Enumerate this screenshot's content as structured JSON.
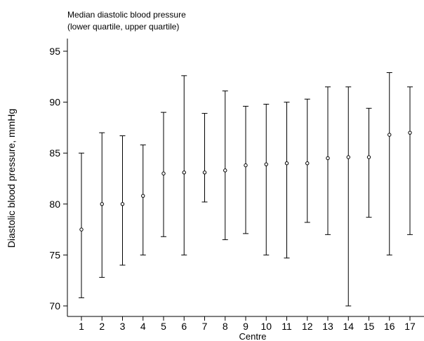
{
  "chart_data": {
    "type": "scatter",
    "subtype": "median-with-quartile-range",
    "legend": {
      "line1": "Median diastolic blood pressure",
      "line2": "(lower quartile, upper quartile)"
    },
    "xlabel": "Centre",
    "ylabel": "Diastolic blood pressure, mmHg",
    "ylim": [
      70,
      95
    ],
    "yticks": [
      70,
      75,
      80,
      85,
      90,
      95
    ],
    "categories": [
      "1",
      "2",
      "3",
      "4",
      "5",
      "6",
      "7",
      "8",
      "9",
      "10",
      "11",
      "12",
      "13",
      "14",
      "15",
      "16",
      "17"
    ],
    "series": [
      {
        "median": [
          77.5,
          80.0,
          80.0,
          80.8,
          83.0,
          83.1,
          83.1,
          83.3,
          83.8,
          83.9,
          84.0,
          84.0,
          84.5,
          84.6,
          84.6,
          86.8,
          87.0
        ],
        "lower_quartile": [
          70.8,
          72.8,
          74.0,
          75.0,
          76.8,
          75.0,
          80.2,
          76.5,
          77.1,
          75.0,
          74.7,
          78.2,
          77.0,
          70.0,
          78.7,
          75.0,
          77.0
        ],
        "upper_quartile": [
          85.0,
          87.0,
          86.7,
          85.8,
          89.0,
          92.6,
          88.9,
          91.1,
          89.6,
          89.8,
          90.0,
          90.3,
          91.5,
          91.5,
          89.4,
          92.9,
          91.5
        ]
      }
    ],
    "grid": false
  },
  "colors": {
    "ink": "#000000",
    "background": "#ffffff"
  }
}
